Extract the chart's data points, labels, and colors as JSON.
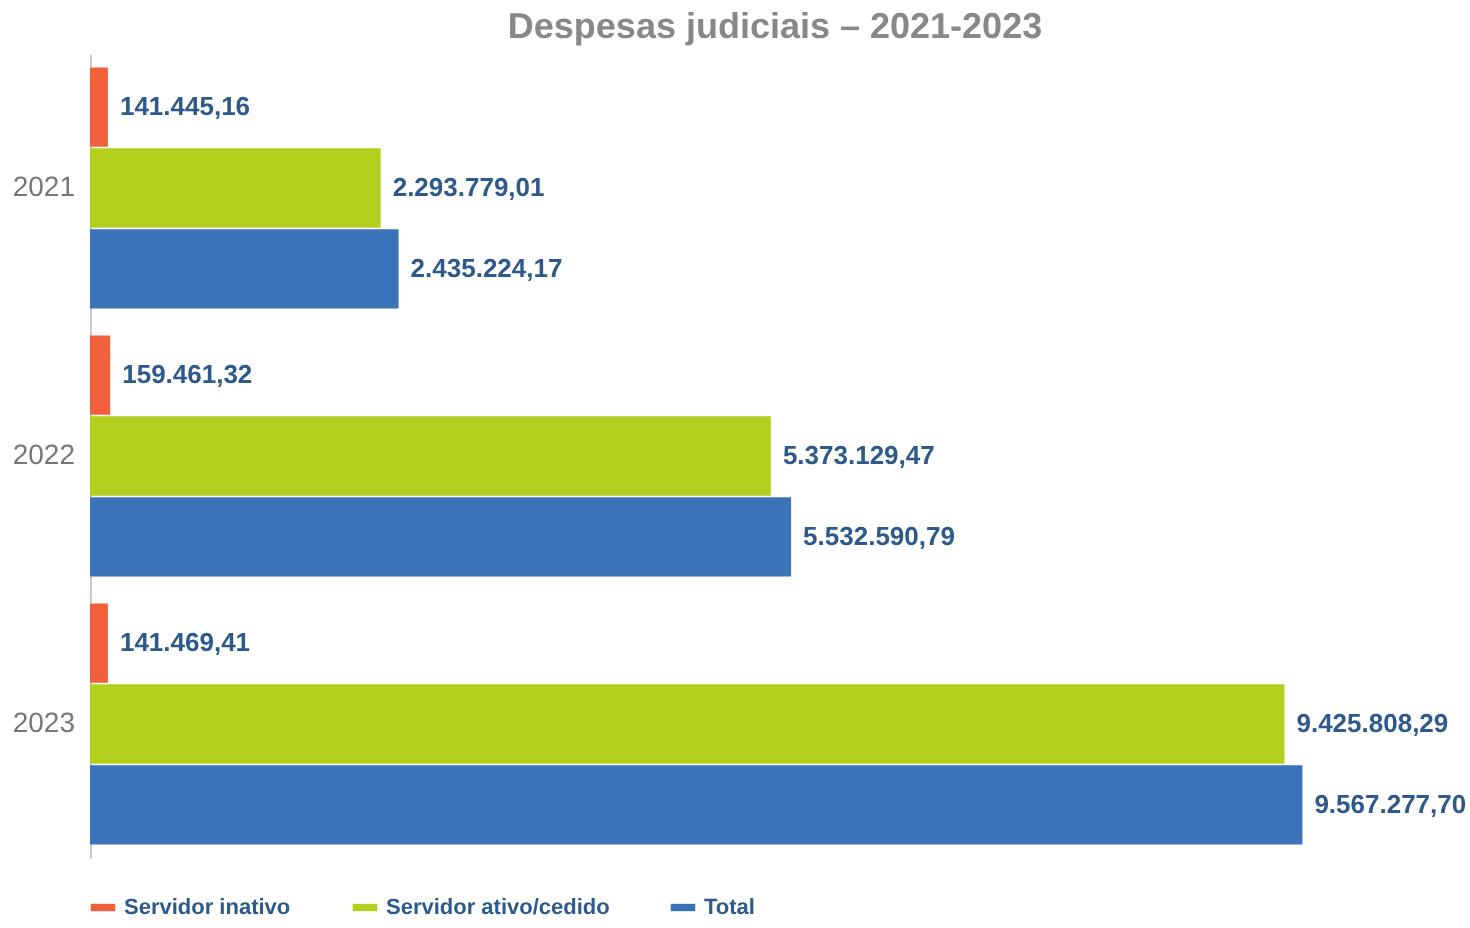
{
  "chart_data": {
    "type": "bar",
    "orientation": "horizontal",
    "title": "Despesas judiciais – 2021-2023",
    "categories": [
      "2021",
      "2022",
      "2023"
    ],
    "series": [
      {
        "name": "Servidor inativo",
        "color": "#f0603a",
        "values": [
          141445.16,
          159461.32,
          141469.41
        ],
        "value_labels": [
          "141.445,16",
          "159.461,32",
          "141.469,41"
        ]
      },
      {
        "name": "Servidor ativo/cedido",
        "color": "#b5cf1e",
        "values": [
          2293779.01,
          5373129.47,
          9425808.29
        ],
        "value_labels": [
          "2.293.779,01",
          "5.373.129,47",
          "9.425.808,29"
        ]
      },
      {
        "name": "Total",
        "color": "#3a73b8",
        "values": [
          2435224.17,
          5532590.79,
          9567277.7
        ],
        "value_labels": [
          "2.435.224,17",
          "5.532.590,79",
          "9.567.277,70"
        ]
      }
    ],
    "legend": "bottom",
    "tick_labels": "y",
    "grid": false
  }
}
